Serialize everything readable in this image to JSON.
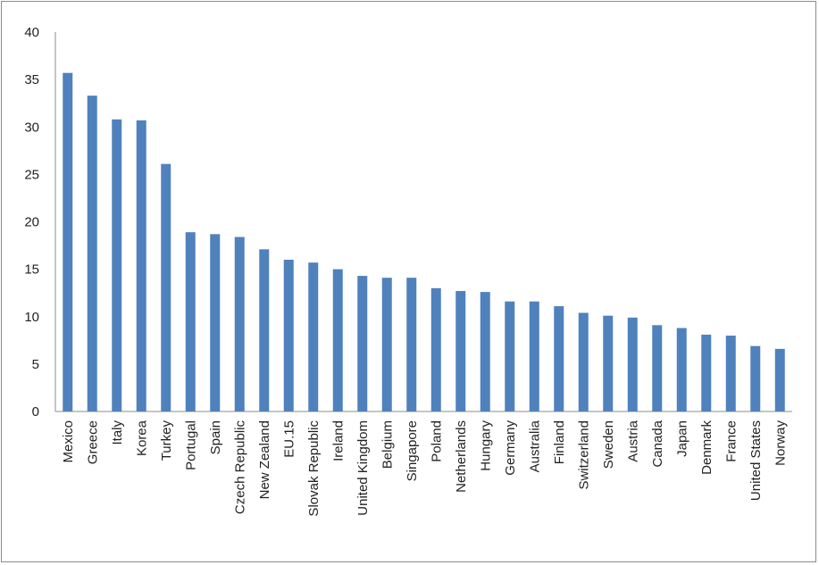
{
  "chart_data": {
    "type": "bar",
    "title": "",
    "xlabel": "",
    "ylabel": "",
    "ylim": [
      0,
      40
    ],
    "yticks": [
      0,
      5,
      10,
      15,
      20,
      25,
      30,
      35,
      40
    ],
    "grid": false,
    "bar_color": "#4f81bd",
    "categories": [
      "Mexico",
      "Greece",
      "Italy",
      "Korea",
      "Turkey",
      "Portugal",
      "Spain",
      "Czech Republic",
      "New Zealand",
      "EU.15",
      "Slovak Republic",
      "Ireland",
      "United Kingdom",
      "Belgium",
      "Singapore",
      "Poland",
      "Netherlands",
      "Hungary",
      "Germany",
      "Australia",
      "Finland",
      "Switzerland",
      "Sweden",
      "Austria",
      "Canada",
      "Japan",
      "Denmark",
      "France",
      "United States",
      "Norway"
    ],
    "values": [
      35.7,
      33.3,
      30.8,
      30.7,
      26.1,
      18.9,
      18.7,
      18.4,
      17.1,
      16.0,
      15.7,
      15.0,
      14.3,
      14.1,
      14.1,
      13.0,
      12.7,
      12.6,
      11.6,
      11.6,
      11.1,
      10.4,
      10.1,
      9.9,
      9.1,
      8.8,
      8.1,
      8.0,
      6.9,
      6.6
    ]
  }
}
